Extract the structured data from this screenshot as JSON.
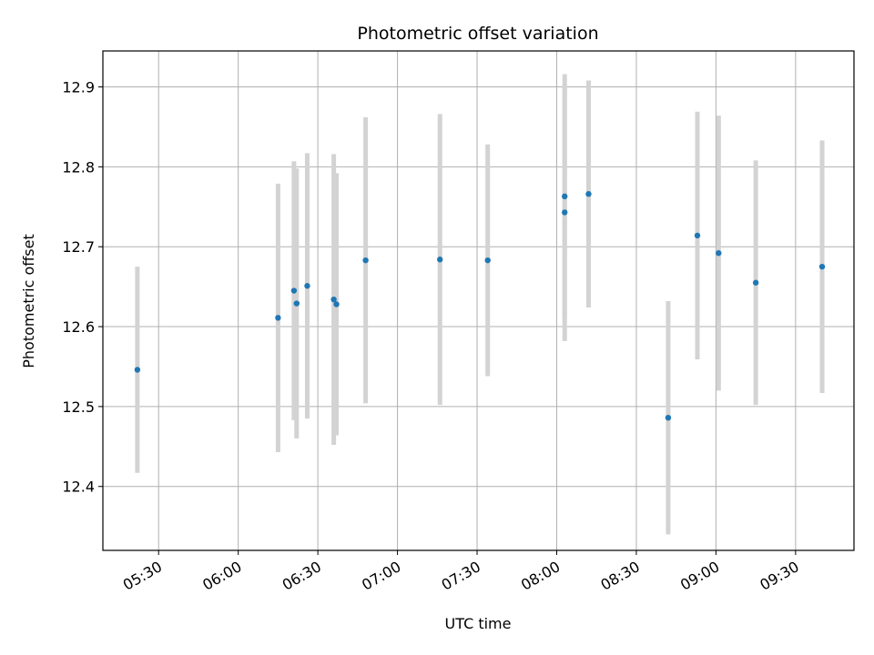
{
  "chart_data": {
    "type": "scatter",
    "title": "Photometric offset variation",
    "xlabel": "UTC time",
    "ylabel": "Photometric offset",
    "x_ticks": [
      "05:30",
      "06:00",
      "06:30",
      "07:00",
      "07:30",
      "08:00",
      "08:30",
      "09:00",
      "09:30"
    ],
    "y_ticks": [
      "12.4",
      "12.5",
      "12.6",
      "12.7",
      "12.8",
      "12.9"
    ],
    "xlim": [
      "05:09",
      "09:52"
    ],
    "ylim": [
      12.32,
      12.945
    ],
    "grid": true,
    "point_color": "#1f77b4",
    "errorbar_color": "#d3d3d3",
    "points": [
      {
        "x": "05:22",
        "y": 12.546,
        "err": 0.129
      },
      {
        "x": "06:15",
        "y": 12.611,
        "err": 0.168
      },
      {
        "x": "06:21",
        "y": 12.645,
        "err": 0.162
      },
      {
        "x": "06:22",
        "y": 12.629,
        "err": 0.169
      },
      {
        "x": "06:26",
        "y": 12.651,
        "err": 0.166
      },
      {
        "x": "06:36",
        "y": 12.634,
        "err": 0.182
      },
      {
        "x": "06:37",
        "y": 12.628,
        "err": 0.164
      },
      {
        "x": "06:48",
        "y": 12.683,
        "err": 0.179
      },
      {
        "x": "07:16",
        "y": 12.684,
        "err": 0.182
      },
      {
        "x": "07:34",
        "y": 12.683,
        "err": 0.145
      },
      {
        "x": "08:03",
        "y": 12.743,
        "err": 0.161
      },
      {
        "x": "08:03",
        "y": 12.763,
        "err": 0.153
      },
      {
        "x": "08:12",
        "y": 12.766,
        "err": 0.142
      },
      {
        "x": "08:42",
        "y": 12.486,
        "err": 0.146
      },
      {
        "x": "08:53",
        "y": 12.714,
        "err": 0.155
      },
      {
        "x": "09:01",
        "y": 12.692,
        "err": 0.172
      },
      {
        "x": "09:15",
        "y": 12.655,
        "err": 0.153
      },
      {
        "x": "09:40",
        "y": 12.675,
        "err": 0.158
      }
    ]
  }
}
